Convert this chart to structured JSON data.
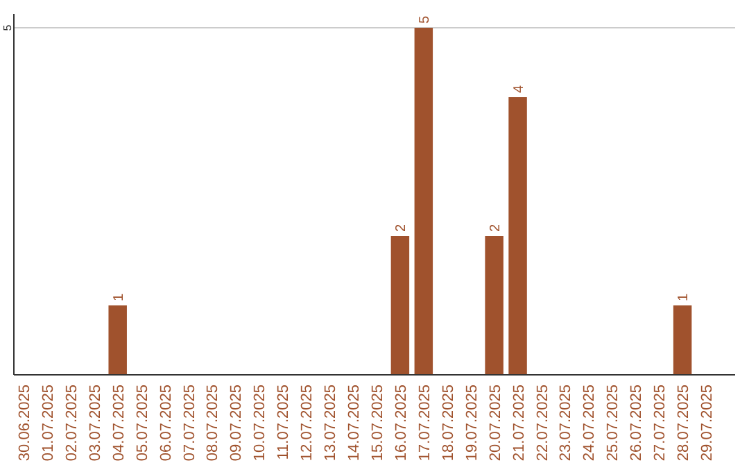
{
  "chart_data": {
    "type": "bar",
    "categories": [
      "30.06.2025",
      "01.07.2025",
      "02.07.2025",
      "03.07.2025",
      "04.07.2025",
      "05.07.2025",
      "06.07.2025",
      "07.07.2025",
      "08.07.2025",
      "09.07.2025",
      "10.07.2025",
      "11.07.2025",
      "12.07.2025",
      "13.07.2025",
      "14.07.2025",
      "15.07.2025",
      "16.07.2025",
      "17.07.2025",
      "18.07.2025",
      "19.07.2025",
      "20.07.2025",
      "21.07.2025",
      "22.07.2025",
      "23.07.2025",
      "24.07.2025",
      "25.07.2025",
      "26.07.2025",
      "27.07.2025",
      "28.07.2025",
      "29.07.2025"
    ],
    "values": [
      0,
      0,
      0,
      0,
      1,
      0,
      0,
      0,
      0,
      0,
      0,
      0,
      0,
      0,
      0,
      0,
      2,
      5,
      0,
      0,
      2,
      4,
      0,
      0,
      0,
      0,
      0,
      0,
      1,
      0
    ],
    "value_labels": [
      null,
      null,
      null,
      null,
      "1",
      null,
      null,
      null,
      null,
      null,
      null,
      null,
      null,
      null,
      null,
      null,
      "2",
      "5",
      null,
      null,
      "2",
      "4",
      null,
      null,
      null,
      null,
      null,
      null,
      "1",
      null
    ],
    "color": "#a0522d",
    "ylim": [
      0,
      5.2
    ],
    "yticks": [
      5
    ],
    "grid": "y"
  }
}
